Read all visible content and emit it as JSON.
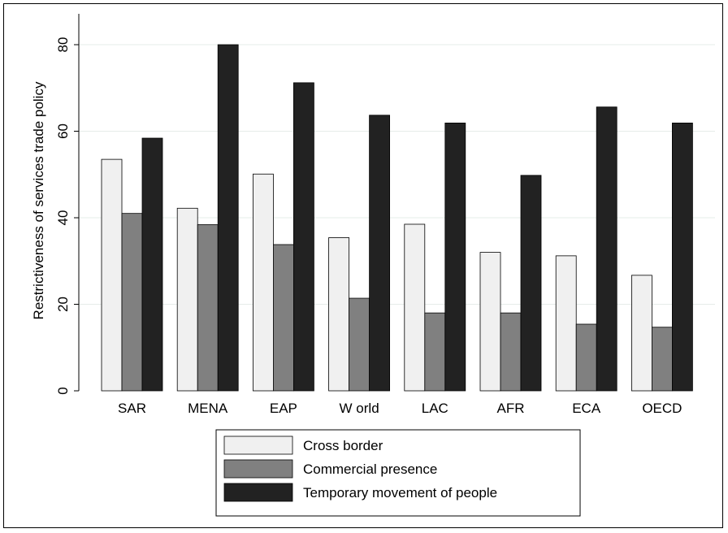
{
  "chart_data": {
    "type": "bar",
    "ylabel": "Restrictiveness of services trade policy",
    "xlabel": "",
    "ylim": [
      0,
      85
    ],
    "yticks": [
      0,
      20,
      40,
      60,
      80
    ],
    "grid": true,
    "legend_position": "bottom",
    "categories": [
      "SAR",
      "MENA",
      "EAP",
      "World",
      "LAC",
      "AFR",
      "ECA",
      "OECD"
    ],
    "category_labels": [
      "SAR",
      "MENA",
      "EAP",
      "W orld",
      "LAC",
      "AFR",
      "ECA",
      "OECD"
    ],
    "series": [
      {
        "name": "Cross border",
        "color": "#f0f0f0",
        "values": [
          53.5,
          42.2,
          50.1,
          35.4,
          38.5,
          32.0,
          31.2,
          26.7
        ]
      },
      {
        "name": "Commercial presence",
        "color": "#808080",
        "values": [
          41.0,
          38.4,
          33.8,
          21.4,
          18.0,
          18.0,
          15.4,
          14.7
        ]
      },
      {
        "name": "Temporary movement of people",
        "color": "#222222",
        "values": [
          58.4,
          80.0,
          71.2,
          63.7,
          61.9,
          49.8,
          65.6,
          61.9
        ]
      }
    ]
  }
}
